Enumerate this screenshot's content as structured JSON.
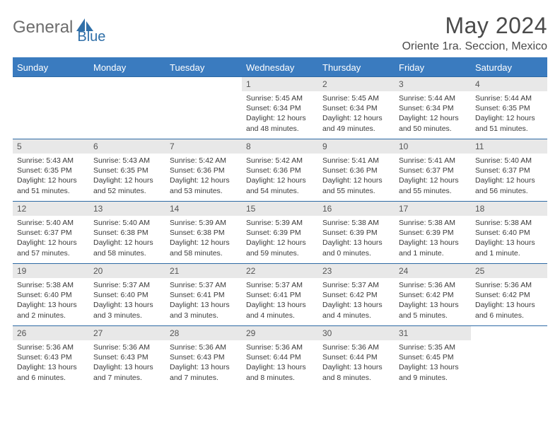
{
  "logo": {
    "word1": "General",
    "word2": "Blue"
  },
  "title": "May 2024",
  "location": "Oriente 1ra. Seccion, Mexico",
  "colors": {
    "header_bg": "#3a7bbf",
    "header_text": "#ffffff",
    "border": "#2e6aa5",
    "daynum_bg": "#e8e8e8",
    "text": "#3a3a3a",
    "logo_gray": "#6d6d6d",
    "logo_blue": "#2f6fa8"
  },
  "weekdays": [
    "Sunday",
    "Monday",
    "Tuesday",
    "Wednesday",
    "Thursday",
    "Friday",
    "Saturday"
  ],
  "weeks": [
    [
      {
        "empty": true
      },
      {
        "empty": true
      },
      {
        "empty": true
      },
      {
        "day": "1",
        "sunrise": "Sunrise: 5:45 AM",
        "sunset": "Sunset: 6:34 PM",
        "daylight": "Daylight: 12 hours and 48 minutes."
      },
      {
        "day": "2",
        "sunrise": "Sunrise: 5:45 AM",
        "sunset": "Sunset: 6:34 PM",
        "daylight": "Daylight: 12 hours and 49 minutes."
      },
      {
        "day": "3",
        "sunrise": "Sunrise: 5:44 AM",
        "sunset": "Sunset: 6:34 PM",
        "daylight": "Daylight: 12 hours and 50 minutes."
      },
      {
        "day": "4",
        "sunrise": "Sunrise: 5:44 AM",
        "sunset": "Sunset: 6:35 PM",
        "daylight": "Daylight: 12 hours and 51 minutes."
      }
    ],
    [
      {
        "day": "5",
        "sunrise": "Sunrise: 5:43 AM",
        "sunset": "Sunset: 6:35 PM",
        "daylight": "Daylight: 12 hours and 51 minutes."
      },
      {
        "day": "6",
        "sunrise": "Sunrise: 5:43 AM",
        "sunset": "Sunset: 6:35 PM",
        "daylight": "Daylight: 12 hours and 52 minutes."
      },
      {
        "day": "7",
        "sunrise": "Sunrise: 5:42 AM",
        "sunset": "Sunset: 6:36 PM",
        "daylight": "Daylight: 12 hours and 53 minutes."
      },
      {
        "day": "8",
        "sunrise": "Sunrise: 5:42 AM",
        "sunset": "Sunset: 6:36 PM",
        "daylight": "Daylight: 12 hours and 54 minutes."
      },
      {
        "day": "9",
        "sunrise": "Sunrise: 5:41 AM",
        "sunset": "Sunset: 6:36 PM",
        "daylight": "Daylight: 12 hours and 55 minutes."
      },
      {
        "day": "10",
        "sunrise": "Sunrise: 5:41 AM",
        "sunset": "Sunset: 6:37 PM",
        "daylight": "Daylight: 12 hours and 55 minutes."
      },
      {
        "day": "11",
        "sunrise": "Sunrise: 5:40 AM",
        "sunset": "Sunset: 6:37 PM",
        "daylight": "Daylight: 12 hours and 56 minutes."
      }
    ],
    [
      {
        "day": "12",
        "sunrise": "Sunrise: 5:40 AM",
        "sunset": "Sunset: 6:37 PM",
        "daylight": "Daylight: 12 hours and 57 minutes."
      },
      {
        "day": "13",
        "sunrise": "Sunrise: 5:40 AM",
        "sunset": "Sunset: 6:38 PM",
        "daylight": "Daylight: 12 hours and 58 minutes."
      },
      {
        "day": "14",
        "sunrise": "Sunrise: 5:39 AM",
        "sunset": "Sunset: 6:38 PM",
        "daylight": "Daylight: 12 hours and 58 minutes."
      },
      {
        "day": "15",
        "sunrise": "Sunrise: 5:39 AM",
        "sunset": "Sunset: 6:39 PM",
        "daylight": "Daylight: 12 hours and 59 minutes."
      },
      {
        "day": "16",
        "sunrise": "Sunrise: 5:38 AM",
        "sunset": "Sunset: 6:39 PM",
        "daylight": "Daylight: 13 hours and 0 minutes."
      },
      {
        "day": "17",
        "sunrise": "Sunrise: 5:38 AM",
        "sunset": "Sunset: 6:39 PM",
        "daylight": "Daylight: 13 hours and 1 minute."
      },
      {
        "day": "18",
        "sunrise": "Sunrise: 5:38 AM",
        "sunset": "Sunset: 6:40 PM",
        "daylight": "Daylight: 13 hours and 1 minute."
      }
    ],
    [
      {
        "day": "19",
        "sunrise": "Sunrise: 5:38 AM",
        "sunset": "Sunset: 6:40 PM",
        "daylight": "Daylight: 13 hours and 2 minutes."
      },
      {
        "day": "20",
        "sunrise": "Sunrise: 5:37 AM",
        "sunset": "Sunset: 6:40 PM",
        "daylight": "Daylight: 13 hours and 3 minutes."
      },
      {
        "day": "21",
        "sunrise": "Sunrise: 5:37 AM",
        "sunset": "Sunset: 6:41 PM",
        "daylight": "Daylight: 13 hours and 3 minutes."
      },
      {
        "day": "22",
        "sunrise": "Sunrise: 5:37 AM",
        "sunset": "Sunset: 6:41 PM",
        "daylight": "Daylight: 13 hours and 4 minutes."
      },
      {
        "day": "23",
        "sunrise": "Sunrise: 5:37 AM",
        "sunset": "Sunset: 6:42 PM",
        "daylight": "Daylight: 13 hours and 4 minutes."
      },
      {
        "day": "24",
        "sunrise": "Sunrise: 5:36 AM",
        "sunset": "Sunset: 6:42 PM",
        "daylight": "Daylight: 13 hours and 5 minutes."
      },
      {
        "day": "25",
        "sunrise": "Sunrise: 5:36 AM",
        "sunset": "Sunset: 6:42 PM",
        "daylight": "Daylight: 13 hours and 6 minutes."
      }
    ],
    [
      {
        "day": "26",
        "sunrise": "Sunrise: 5:36 AM",
        "sunset": "Sunset: 6:43 PM",
        "daylight": "Daylight: 13 hours and 6 minutes."
      },
      {
        "day": "27",
        "sunrise": "Sunrise: 5:36 AM",
        "sunset": "Sunset: 6:43 PM",
        "daylight": "Daylight: 13 hours and 7 minutes."
      },
      {
        "day": "28",
        "sunrise": "Sunrise: 5:36 AM",
        "sunset": "Sunset: 6:43 PM",
        "daylight": "Daylight: 13 hours and 7 minutes."
      },
      {
        "day": "29",
        "sunrise": "Sunrise: 5:36 AM",
        "sunset": "Sunset: 6:44 PM",
        "daylight": "Daylight: 13 hours and 8 minutes."
      },
      {
        "day": "30",
        "sunrise": "Sunrise: 5:36 AM",
        "sunset": "Sunset: 6:44 PM",
        "daylight": "Daylight: 13 hours and 8 minutes."
      },
      {
        "day": "31",
        "sunrise": "Sunrise: 5:35 AM",
        "sunset": "Sunset: 6:45 PM",
        "daylight": "Daylight: 13 hours and 9 minutes."
      },
      {
        "empty": true
      }
    ]
  ]
}
